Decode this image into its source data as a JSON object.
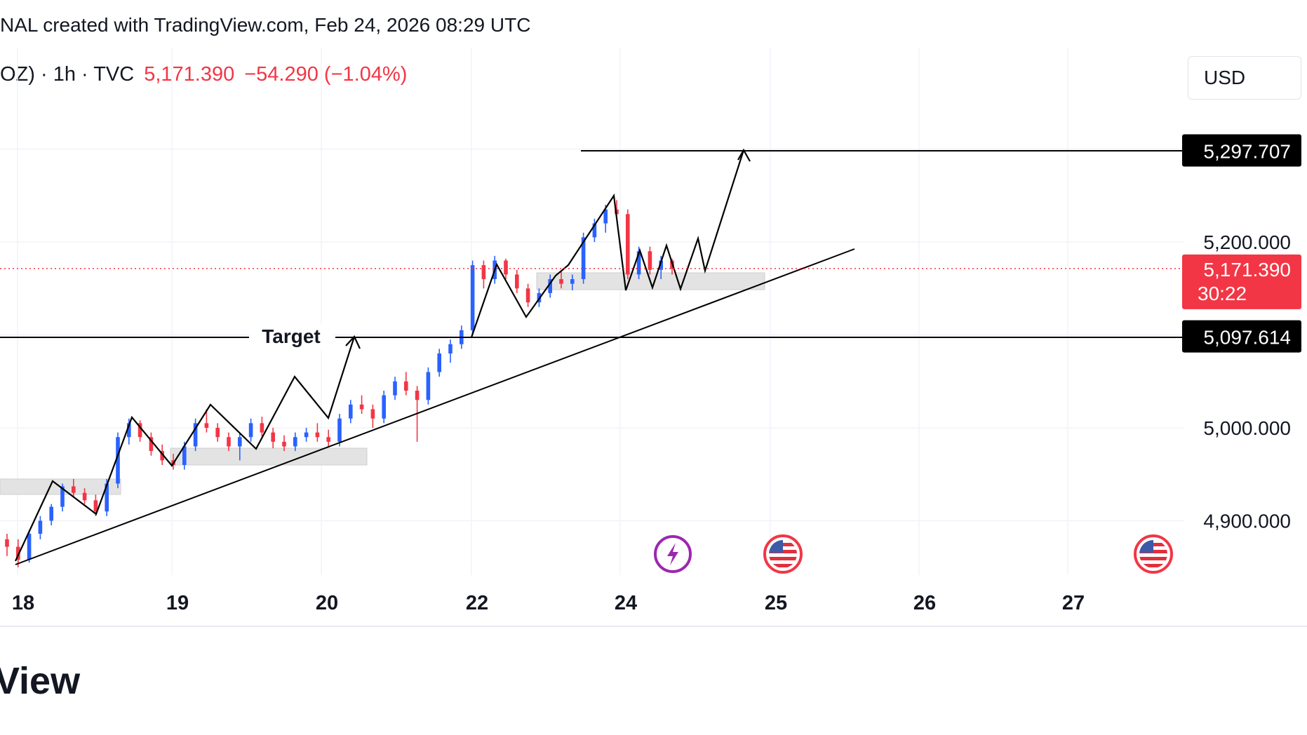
{
  "header": {
    "text": "NAL created with TradingView.com, Feb 24, 2026 08:29 UTC"
  },
  "symbol": {
    "name": "OZ) · 1h · TVC",
    "price": "5,171.390",
    "change": "−54.290 (−1.04%)"
  },
  "currency": "USD",
  "brand": "View",
  "colors": {
    "up": "#2962ff",
    "down": "#f23645",
    "price_label_bg": "#f23645",
    "level_label_bg": "#000000",
    "zone_fill": "#e3e3e3",
    "grid": "#f0f3fa"
  },
  "icons": [
    "lightning-event-icon",
    "us-flag-event-icon",
    "us-flag-event-icon"
  ],
  "chart_data": {
    "type": "candlestick",
    "timeframe": "1h",
    "x_ticks": [
      "18",
      "19",
      "20",
      "22",
      "24",
      "25",
      "26",
      "27"
    ],
    "y_ticks": [
      "5,200.000",
      "5,000.000",
      "4,900.000"
    ],
    "ylim": [
      4850,
      5360
    ],
    "grid": true,
    "current_price": {
      "value": 5171.39,
      "label": "5,171.390",
      "countdown": "30:22"
    },
    "levels": [
      {
        "value": 5297.707,
        "label": "5,297.707"
      },
      {
        "value": 5097.614,
        "label": "5,097.614"
      }
    ],
    "annotations": [
      {
        "type": "text",
        "text": "Target"
      }
    ],
    "candles_ohlc_approx": [
      [
        4880,
        4886,
        4862,
        4872
      ],
      [
        4872,
        4880,
        4850,
        4858
      ],
      [
        4858,
        4890,
        4855,
        4886
      ],
      [
        4886,
        4905,
        4880,
        4900
      ],
      [
        4900,
        4918,
        4895,
        4915
      ],
      [
        4915,
        4940,
        4910,
        4937
      ],
      [
        4937,
        4945,
        4925,
        4930
      ],
      [
        4930,
        4935,
        4918,
        4922
      ],
      [
        4922,
        4928,
        4905,
        4910
      ],
      [
        4910,
        4945,
        4905,
        4940
      ],
      [
        4940,
        4995,
        4935,
        4990
      ],
      [
        4990,
        5010,
        4982,
        5005
      ],
      [
        5005,
        5008,
        4985,
        4990
      ],
      [
        4990,
        4995,
        4970,
        4975
      ],
      [
        4975,
        4982,
        4960,
        4965
      ],
      [
        4965,
        4972,
        4955,
        4960
      ],
      [
        4960,
        4985,
        4955,
        4980
      ],
      [
        4980,
        5010,
        4975,
        5005
      ],
      [
        5005,
        5020,
        4995,
        5000
      ],
      [
        5000,
        5005,
        4985,
        4990
      ],
      [
        4990,
        4995,
        4975,
        4980
      ],
      [
        4980,
        4995,
        4965,
        4990
      ],
      [
        4990,
        5010,
        4985,
        5005
      ],
      [
        5005,
        5012,
        4990,
        4995
      ],
      [
        4995,
        5000,
        4978,
        4985
      ],
      [
        4985,
        4992,
        4975,
        4980
      ],
      [
        4980,
        4995,
        4975,
        4990
      ],
      [
        4990,
        5000,
        4985,
        4995
      ],
      [
        4995,
        5005,
        4985,
        4990
      ],
      [
        4990,
        4998,
        4980,
        4985
      ],
      [
        4985,
        5015,
        4980,
        5010
      ],
      [
        5010,
        5030,
        5005,
        5025
      ],
      [
        5025,
        5035,
        5015,
        5020
      ],
      [
        5020,
        5025,
        5000,
        5010
      ],
      [
        5010,
        5040,
        5005,
        5035
      ],
      [
        5035,
        5055,
        5030,
        5050
      ],
      [
        5050,
        5060,
        5035,
        5040
      ],
      [
        5040,
        5045,
        4985,
        5030
      ],
      [
        5030,
        5065,
        5025,
        5060
      ],
      [
        5060,
        5085,
        5055,
        5080
      ],
      [
        5080,
        5095,
        5070,
        5090
      ],
      [
        5090,
        5110,
        5085,
        5105
      ],
      [
        5105,
        5180,
        5100,
        5175
      ],
      [
        5175,
        5180,
        5150,
        5160
      ],
      [
        5160,
        5185,
        5155,
        5180
      ],
      [
        5180,
        5182,
        5160,
        5165
      ],
      [
        5165,
        5170,
        5145,
        5150
      ],
      [
        5150,
        5155,
        5130,
        5135
      ],
      [
        5135,
        5150,
        5130,
        5145
      ],
      [
        5145,
        5165,
        5140,
        5160
      ],
      [
        5160,
        5168,
        5150,
        5155
      ],
      [
        5155,
        5165,
        5148,
        5160
      ],
      [
        5160,
        5210,
        5155,
        5205
      ],
      [
        5205,
        5225,
        5200,
        5220
      ],
      [
        5220,
        5240,
        5210,
        5235
      ],
      [
        5235,
        5245,
        5225,
        5230
      ],
      [
        5230,
        5235,
        5160,
        5165
      ],
      [
        5165,
        5195,
        5160,
        5190
      ],
      [
        5190,
        5195,
        5165,
        5170
      ],
      [
        5170,
        5185,
        5160,
        5180
      ],
      [
        5180,
        5182,
        5165,
        5171
      ]
    ]
  }
}
